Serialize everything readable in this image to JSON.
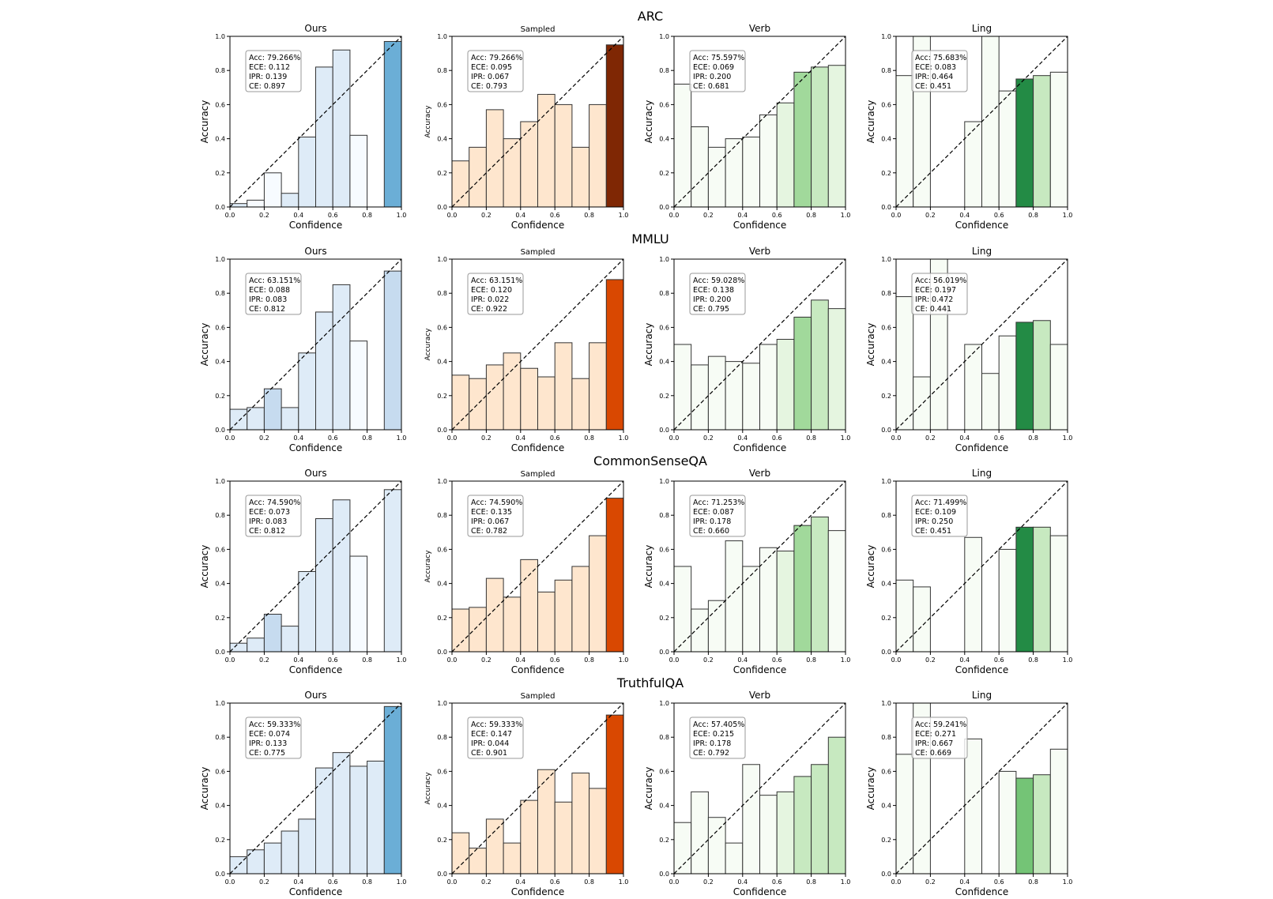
{
  "figure": {
    "row_titles": [
      "ARC",
      "MMLU",
      "CommonSenseQA",
      "TruthfulQA"
    ],
    "column_titles": [
      "Ours",
      "Sampled",
      "Verb",
      "Ling"
    ],
    "xlabel": "Confidence",
    "ylabel": "Accuracy",
    "tick_labels": [
      "0.0",
      "0.2",
      "0.4",
      "0.6",
      "0.8",
      "1.0"
    ]
  },
  "colormaps": {
    "Ours": [
      "#f7fbff",
      "#deebf7",
      "#c6dbef",
      "#9ecae1",
      "#6baed6",
      "#4292c6",
      "#2171b5",
      "#08519c",
      "#08306b"
    ],
    "Sampled": [
      "#fff5eb",
      "#fee6ce",
      "#fdd0a2",
      "#fdae6b",
      "#fd8d3c",
      "#f16913",
      "#d94801",
      "#a63603",
      "#7f2704"
    ],
    "Verb": [
      "#f7fcf5",
      "#e5f5e0",
      "#c7e9c0",
      "#a1d99b",
      "#74c476",
      "#41ab5d",
      "#238b45",
      "#006d2c",
      "#00441b"
    ],
    "Ling": [
      "#f7fcf5",
      "#e5f5e0",
      "#c7e9c0",
      "#a1d99b",
      "#74c476",
      "#41ab5d",
      "#238b45",
      "#006d2c",
      "#00441b"
    ]
  },
  "chart_data": [
    {
      "type": "bar",
      "dataset": "ARC",
      "method": "Ours",
      "title": "Ours",
      "xlabel": "Confidence",
      "ylabel": "Accuracy",
      "xlim": [
        0,
        1
      ],
      "ylim": [
        0,
        1
      ],
      "bin_edges": [
        0,
        0.1,
        0.2,
        0.3,
        0.4,
        0.5,
        0.6,
        0.7,
        0.8,
        0.9,
        1.0
      ],
      "values": [
        0.02,
        0.04,
        0.2,
        0.08,
        0.41,
        0.82,
        0.92,
        0.42,
        null,
        0.97
      ],
      "bin_color_levels": [
        0.1,
        0.05,
        0.05,
        0.1,
        0.1,
        0.15,
        0.15,
        0.03,
        0,
        0.5
      ],
      "diagonal": true,
      "annotation": [
        "Acc: 79.266%",
        "ECE: 0.112",
        "IPR: 0.139",
        "CE: 0.897"
      ]
    },
    {
      "type": "bar",
      "dataset": "ARC",
      "method": "Sampled",
      "title": "Sampled",
      "xlabel": "Confidence",
      "ylabel": "Accuracy",
      "xlim": [
        0,
        1
      ],
      "ylim": [
        0,
        1
      ],
      "bin_edges": [
        0,
        0.1,
        0.2,
        0.3,
        0.4,
        0.5,
        0.6,
        0.7,
        0.8,
        0.9,
        1.0
      ],
      "values": [
        0.27,
        0.35,
        0.57,
        0.4,
        0.5,
        0.66,
        0.6,
        0.35,
        0.6,
        0.95
      ],
      "bin_color_levels": [
        0.08,
        0.08,
        0.08,
        0.08,
        0.08,
        0.08,
        0.08,
        0.08,
        0.08,
        0.95
      ],
      "diagonal": true,
      "annotation": [
        "Acc: 79.266%",
        "ECE: 0.095",
        "IPR: 0.067",
        "CE: 0.793"
      ]
    },
    {
      "type": "bar",
      "dataset": "ARC",
      "method": "Verb",
      "title": "Verb",
      "xlabel": "Confidence",
      "ylabel": "Accuracy",
      "xlim": [
        0,
        1
      ],
      "ylim": [
        0,
        1
      ],
      "bin_edges": [
        0,
        0.1,
        0.2,
        0.3,
        0.4,
        0.5,
        0.6,
        0.7,
        0.8,
        0.9,
        1.0
      ],
      "values": [
        0.72,
        0.47,
        0.35,
        0.4,
        0.41,
        0.54,
        0.61,
        0.79,
        0.82,
        0.83
      ],
      "bin_color_levels": [
        0.02,
        0.02,
        0.02,
        0.02,
        0.02,
        0.05,
        0.08,
        0.4,
        0.3,
        0.15
      ],
      "diagonal": true,
      "annotation": [
        "Acc: 75.597%",
        "ECE: 0.069",
        "IPR: 0.200",
        "CE: 0.681"
      ]
    },
    {
      "type": "bar",
      "dataset": "ARC",
      "method": "Ling",
      "title": "Ling",
      "xlabel": "Confidence",
      "ylabel": "Accuracy",
      "xlim": [
        0,
        1
      ],
      "ylim": [
        0,
        1
      ],
      "bin_edges": [
        0,
        0.1,
        0.2,
        0.3,
        0.4,
        0.5,
        0.6,
        0.7,
        0.8,
        0.9,
        1.0
      ],
      "values": [
        0.77,
        1.0,
        null,
        null,
        0.5,
        1.0,
        0.68,
        0.75,
        0.77,
        0.79
      ],
      "bin_color_levels": [
        0.02,
        0.02,
        0,
        0,
        0.02,
        0.02,
        0.02,
        0.7,
        0.25,
        0.05
      ],
      "diagonal": true,
      "annotation": [
        "Acc: 75.683%",
        "ECE: 0.083",
        "IPR: 0.464",
        "CE: 0.451"
      ]
    },
    {
      "type": "bar",
      "dataset": "MMLU",
      "method": "Ours",
      "title": "Ours",
      "xlabel": "Confidence",
      "ylabel": "Accuracy",
      "xlim": [
        0,
        1
      ],
      "ylim": [
        0,
        1
      ],
      "bin_edges": [
        0,
        0.1,
        0.2,
        0.3,
        0.4,
        0.5,
        0.6,
        0.7,
        0.8,
        0.9,
        1.0
      ],
      "values": [
        0.12,
        0.13,
        0.24,
        0.13,
        0.45,
        0.69,
        0.85,
        0.52,
        null,
        0.93
      ],
      "bin_color_levels": [
        0.15,
        0.15,
        0.2,
        0.15,
        0.12,
        0.15,
        0.15,
        0.03,
        0,
        0.25
      ],
      "diagonal": true,
      "annotation": [
        "Acc: 63.151%",
        "ECE: 0.088",
        "IPR: 0.083",
        "CE: 0.812"
      ]
    },
    {
      "type": "bar",
      "dataset": "MMLU",
      "method": "Sampled",
      "title": "Sampled",
      "xlabel": "Confidence",
      "ylabel": "Accuracy",
      "xlim": [
        0,
        1
      ],
      "ylim": [
        0,
        1
      ],
      "bin_edges": [
        0,
        0.1,
        0.2,
        0.3,
        0.4,
        0.5,
        0.6,
        0.7,
        0.8,
        0.9,
        1.0
      ],
      "values": [
        0.32,
        0.3,
        0.38,
        0.45,
        0.36,
        0.31,
        0.51,
        0.3,
        0.51,
        0.88
      ],
      "bin_color_levels": [
        0.1,
        0.08,
        0.08,
        0.08,
        0.08,
        0.08,
        0.08,
        0.08,
        0.08,
        0.7
      ],
      "diagonal": true,
      "annotation": [
        "Acc: 63.151%",
        "ECE: 0.120",
        "IPR: 0.022",
        "CE: 0.922"
      ]
    },
    {
      "type": "bar",
      "dataset": "MMLU",
      "method": "Verb",
      "title": "Verb",
      "xlabel": "Confidence",
      "ylabel": "Accuracy",
      "xlim": [
        0,
        1
      ],
      "ylim": [
        0,
        1
      ],
      "bin_edges": [
        0,
        0.1,
        0.2,
        0.3,
        0.4,
        0.5,
        0.6,
        0.7,
        0.8,
        0.9,
        1.0
      ],
      "values": [
        0.5,
        0.38,
        0.43,
        0.4,
        0.39,
        0.5,
        0.53,
        0.66,
        0.76,
        0.71
      ],
      "bin_color_levels": [
        0.02,
        0.02,
        0.02,
        0.02,
        0.02,
        0.05,
        0.1,
        0.35,
        0.25,
        0.15
      ],
      "diagonal": true,
      "annotation": [
        "Acc: 59.028%",
        "ECE: 0.138",
        "IPR: 0.200",
        "CE: 0.795"
      ]
    },
    {
      "type": "bar",
      "dataset": "MMLU",
      "method": "Ling",
      "title": "Ling",
      "xlabel": "Confidence",
      "ylabel": "Accuracy",
      "xlim": [
        0,
        1
      ],
      "ylim": [
        0,
        1
      ],
      "bin_edges": [
        0,
        0.1,
        0.2,
        0.3,
        0.4,
        0.5,
        0.6,
        0.7,
        0.8,
        0.9,
        1.0
      ],
      "values": [
        0.78,
        0.31,
        1.0,
        null,
        0.5,
        0.33,
        0.55,
        0.63,
        0.64,
        0.5
      ],
      "bin_color_levels": [
        0.02,
        0.02,
        0.02,
        0,
        0.02,
        0.02,
        0.02,
        0.8,
        0.2,
        0.02
      ],
      "diagonal": true,
      "annotation": [
        "Acc: 56.019%",
        "ECE: 0.197",
        "IPR: 0.472",
        "CE: 0.441"
      ]
    },
    {
      "type": "bar",
      "dataset": "CommonSenseQA",
      "method": "Ours",
      "title": "Ours",
      "xlabel": "Confidence",
      "ylabel": "Accuracy",
      "xlim": [
        0,
        1
      ],
      "ylim": [
        0,
        1
      ],
      "bin_edges": [
        0,
        0.1,
        0.2,
        0.3,
        0.4,
        0.5,
        0.6,
        0.7,
        0.8,
        0.9,
        1.0
      ],
      "values": [
        0.05,
        0.08,
        0.22,
        0.15,
        0.47,
        0.78,
        0.89,
        0.56,
        null,
        0.95
      ],
      "bin_color_levels": [
        0.15,
        0.15,
        0.2,
        0.15,
        0.15,
        0.15,
        0.15,
        0.05,
        0,
        0.15
      ],
      "diagonal": true,
      "annotation": [
        "Acc: 74.590%",
        "ECE: 0.073",
        "IPR: 0.083",
        "CE: 0.812"
      ]
    },
    {
      "type": "bar",
      "dataset": "CommonSenseQA",
      "method": "Sampled",
      "title": "Sampled",
      "xlabel": "Confidence",
      "ylabel": "Accuracy",
      "xlim": [
        0,
        1
      ],
      "ylim": [
        0,
        1
      ],
      "bin_edges": [
        0,
        0.1,
        0.2,
        0.3,
        0.4,
        0.5,
        0.6,
        0.7,
        0.8,
        0.9,
        1.0
      ],
      "values": [
        0.25,
        0.26,
        0.43,
        0.32,
        0.54,
        0.35,
        0.42,
        0.5,
        0.68,
        0.9
      ],
      "bin_color_levels": [
        0.08,
        0.08,
        0.08,
        0.08,
        0.08,
        0.08,
        0.08,
        0.08,
        0.08,
        0.7
      ],
      "diagonal": true,
      "annotation": [
        "Acc: 74.590%",
        "ECE: 0.135",
        "IPR: 0.067",
        "CE: 0.782"
      ]
    },
    {
      "type": "bar",
      "dataset": "CommonSenseQA",
      "method": "Verb",
      "title": "Verb",
      "xlabel": "Confidence",
      "ylabel": "Accuracy",
      "xlim": [
        0,
        1
      ],
      "ylim": [
        0,
        1
      ],
      "bin_edges": [
        0,
        0.1,
        0.2,
        0.3,
        0.4,
        0.5,
        0.6,
        0.7,
        0.8,
        0.9,
        1.0
      ],
      "values": [
        0.5,
        0.25,
        0.3,
        0.65,
        0.5,
        0.61,
        0.59,
        0.74,
        0.79,
        0.71
      ],
      "bin_color_levels": [
        0.02,
        0.02,
        0.02,
        0.02,
        0.02,
        0.05,
        0.08,
        0.4,
        0.25,
        0.05
      ],
      "diagonal": true,
      "annotation": [
        "Acc: 71.253%",
        "ECE: 0.087",
        "IPR: 0.178",
        "CE: 0.660"
      ]
    },
    {
      "type": "bar",
      "dataset": "CommonSenseQA",
      "method": "Ling",
      "title": "Ling",
      "xlabel": "Confidence",
      "ylabel": "Accuracy",
      "xlim": [
        0,
        1
      ],
      "ylim": [
        0,
        1
      ],
      "bin_edges": [
        0,
        0.1,
        0.2,
        0.3,
        0.4,
        0.5,
        0.6,
        0.7,
        0.8,
        0.9,
        1.0
      ],
      "values": [
        0.42,
        0.38,
        null,
        null,
        0.67,
        null,
        0.6,
        0.73,
        0.73,
        0.68
      ],
      "bin_color_levels": [
        0.02,
        0.02,
        0,
        0,
        0.02,
        0,
        0.02,
        0.75,
        0.25,
        0.02
      ],
      "diagonal": true,
      "annotation": [
        "Acc: 71.499%",
        "ECE: 0.109",
        "IPR: 0.250",
        "CE: 0.451"
      ]
    },
    {
      "type": "bar",
      "dataset": "TruthfulQA",
      "method": "Ours",
      "title": "Ours",
      "xlabel": "Confidence",
      "ylabel": "Accuracy",
      "xlim": [
        0,
        1
      ],
      "ylim": [
        0,
        1
      ],
      "bin_edges": [
        0,
        0.1,
        0.2,
        0.3,
        0.4,
        0.5,
        0.6,
        0.7,
        0.8,
        0.9,
        1.0
      ],
      "values": [
        0.1,
        0.14,
        0.18,
        0.25,
        0.32,
        0.62,
        0.71,
        0.63,
        0.66,
        0.98
      ],
      "bin_color_levels": [
        0.1,
        0.08,
        0.08,
        0.08,
        0.08,
        0.08,
        0.08,
        0.08,
        0.08,
        0.5
      ],
      "diagonal": true,
      "annotation": [
        "Acc: 59.333%",
        "ECE: 0.074",
        "IPR: 0.133",
        "CE: 0.775"
      ]
    },
    {
      "type": "bar",
      "dataset": "TruthfulQA",
      "method": "Sampled",
      "title": "Sampled",
      "xlabel": "Confidence",
      "ylabel": "Accuracy",
      "xlim": [
        0,
        1
      ],
      "ylim": [
        0,
        1
      ],
      "bin_edges": [
        0,
        0.1,
        0.2,
        0.3,
        0.4,
        0.5,
        0.6,
        0.7,
        0.8,
        0.9,
        1.0
      ],
      "values": [
        0.24,
        0.15,
        0.32,
        0.18,
        0.43,
        0.61,
        0.42,
        0.59,
        0.5,
        0.93
      ],
      "bin_color_levels": [
        0.08,
        0.08,
        0.08,
        0.08,
        0.08,
        0.08,
        0.08,
        0.08,
        0.08,
        0.75
      ],
      "diagonal": true,
      "annotation": [
        "Acc: 59.333%",
        "ECE: 0.147",
        "IPR: 0.044",
        "CE: 0.901"
      ]
    },
    {
      "type": "bar",
      "dataset": "TruthfulQA",
      "method": "Verb",
      "title": "Verb",
      "xlabel": "Confidence",
      "ylabel": "Accuracy",
      "xlim": [
        0,
        1
      ],
      "ylim": [
        0,
        1
      ],
      "bin_edges": [
        0,
        0.1,
        0.2,
        0.3,
        0.4,
        0.5,
        0.6,
        0.7,
        0.8,
        0.9,
        1.0
      ],
      "values": [
        0.3,
        0.48,
        0.33,
        0.18,
        0.64,
        0.46,
        0.48,
        0.57,
        0.64,
        0.8
      ],
      "bin_color_levels": [
        0.02,
        0.02,
        0.02,
        0.02,
        0.02,
        0.05,
        0.08,
        0.2,
        0.2,
        0.2
      ],
      "diagonal": true,
      "annotation": [
        "Acc: 57.405%",
        "ECE: 0.215",
        "IPR: 0.178",
        "CE: 0.792"
      ]
    },
    {
      "type": "bar",
      "dataset": "TruthfulQA",
      "method": "Ling",
      "title": "Ling",
      "xlabel": "Confidence",
      "ylabel": "Accuracy",
      "xlim": [
        0,
        1
      ],
      "ylim": [
        0,
        1
      ],
      "bin_edges": [
        0,
        0.1,
        0.2,
        0.3,
        0.4,
        0.5,
        0.6,
        0.7,
        0.8,
        0.9,
        1.0
      ],
      "values": [
        0.7,
        1.0,
        null,
        null,
        0.79,
        null,
        0.6,
        0.56,
        0.58,
        0.73
      ],
      "bin_color_levels": [
        0.02,
        0.02,
        0,
        0,
        0.02,
        0,
        0.02,
        0.5,
        0.2,
        0.02
      ],
      "diagonal": true,
      "annotation": [
        "Acc: 59.241%",
        "ECE: 0.271",
        "IPR: 0.667",
        "CE: 0.669"
      ]
    }
  ]
}
